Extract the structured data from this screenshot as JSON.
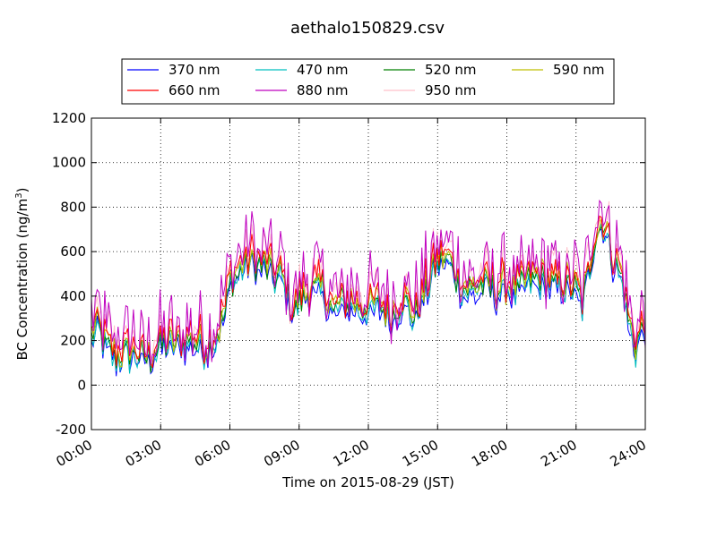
{
  "chart_data": {
    "type": "line",
    "title": "aethalo150829.csv",
    "xlabel": "Time on 2015-08-29 (JST)",
    "ylabel": "BC Concentration (ng/m",
    "ylabel_sup": "3",
    "ylabel_close": ")",
    "xlim": [
      "00:00",
      "24:00"
    ],
    "ylim": [
      -200,
      1200
    ],
    "x_ticks": [
      "00:00",
      "03:00",
      "06:00",
      "09:00",
      "12:00",
      "15:00",
      "18:00",
      "21:00",
      "24:00"
    ],
    "y_ticks": [
      -200,
      0,
      200,
      400,
      600,
      800,
      1000,
      1200
    ],
    "grid": true,
    "legend": {
      "position": "top-center",
      "columns": 4
    },
    "series": [
      {
        "name": "370 nm",
        "color": "#0000ff"
      },
      {
        "name": "470 nm",
        "color": "#00bfbf"
      },
      {
        "name": "520 nm",
        "color": "#008000"
      },
      {
        "name": "590 nm",
        "color": "#bfbf00"
      },
      {
        "name": "660 nm",
        "color": "#ff0000"
      },
      {
        "name": "880 nm",
        "color": "#bf00bf"
      },
      {
        "name": "950 nm",
        "color": "#ffc0cb"
      }
    ],
    "baseline_profile": {
      "hours": [
        0,
        0.3,
        0.6,
        1,
        1.5,
        2,
        2.5,
        3,
        3.5,
        4,
        4.5,
        5,
        5.5,
        5.8,
        6,
        6.5,
        7,
        7.5,
        8,
        8.3,
        8.7,
        9,
        9.5,
        10,
        10.5,
        11,
        11.5,
        12,
        12.5,
        13,
        13.5,
        14,
        14.5,
        15,
        15.5,
        16,
        16.5,
        17,
        17.5,
        18,
        18.5,
        19,
        19.5,
        20,
        20.5,
        21,
        21.3,
        21.8,
        22.2,
        22.6,
        23,
        23.3,
        23.6,
        24
      ],
      "values": [
        230,
        260,
        180,
        130,
        150,
        140,
        120,
        190,
        180,
        190,
        200,
        170,
        230,
        340,
        470,
        530,
        560,
        540,
        490,
        480,
        330,
        380,
        430,
        430,
        330,
        370,
        360,
        340,
        360,
        310,
        390,
        310,
        430,
        570,
        560,
        450,
        430,
        460,
        420,
        450,
        420,
        470,
        470,
        450,
        450,
        430,
        360,
        680,
        740,
        570,
        490,
        270,
        170,
        290
      ]
    },
    "wavelength_offsets": [
      -30,
      -15,
      0,
      15,
      30,
      70,
      50
    ],
    "wavelength_noise": [
      40,
      45,
      45,
      50,
      55,
      95,
      75
    ],
    "samples": 290
  }
}
